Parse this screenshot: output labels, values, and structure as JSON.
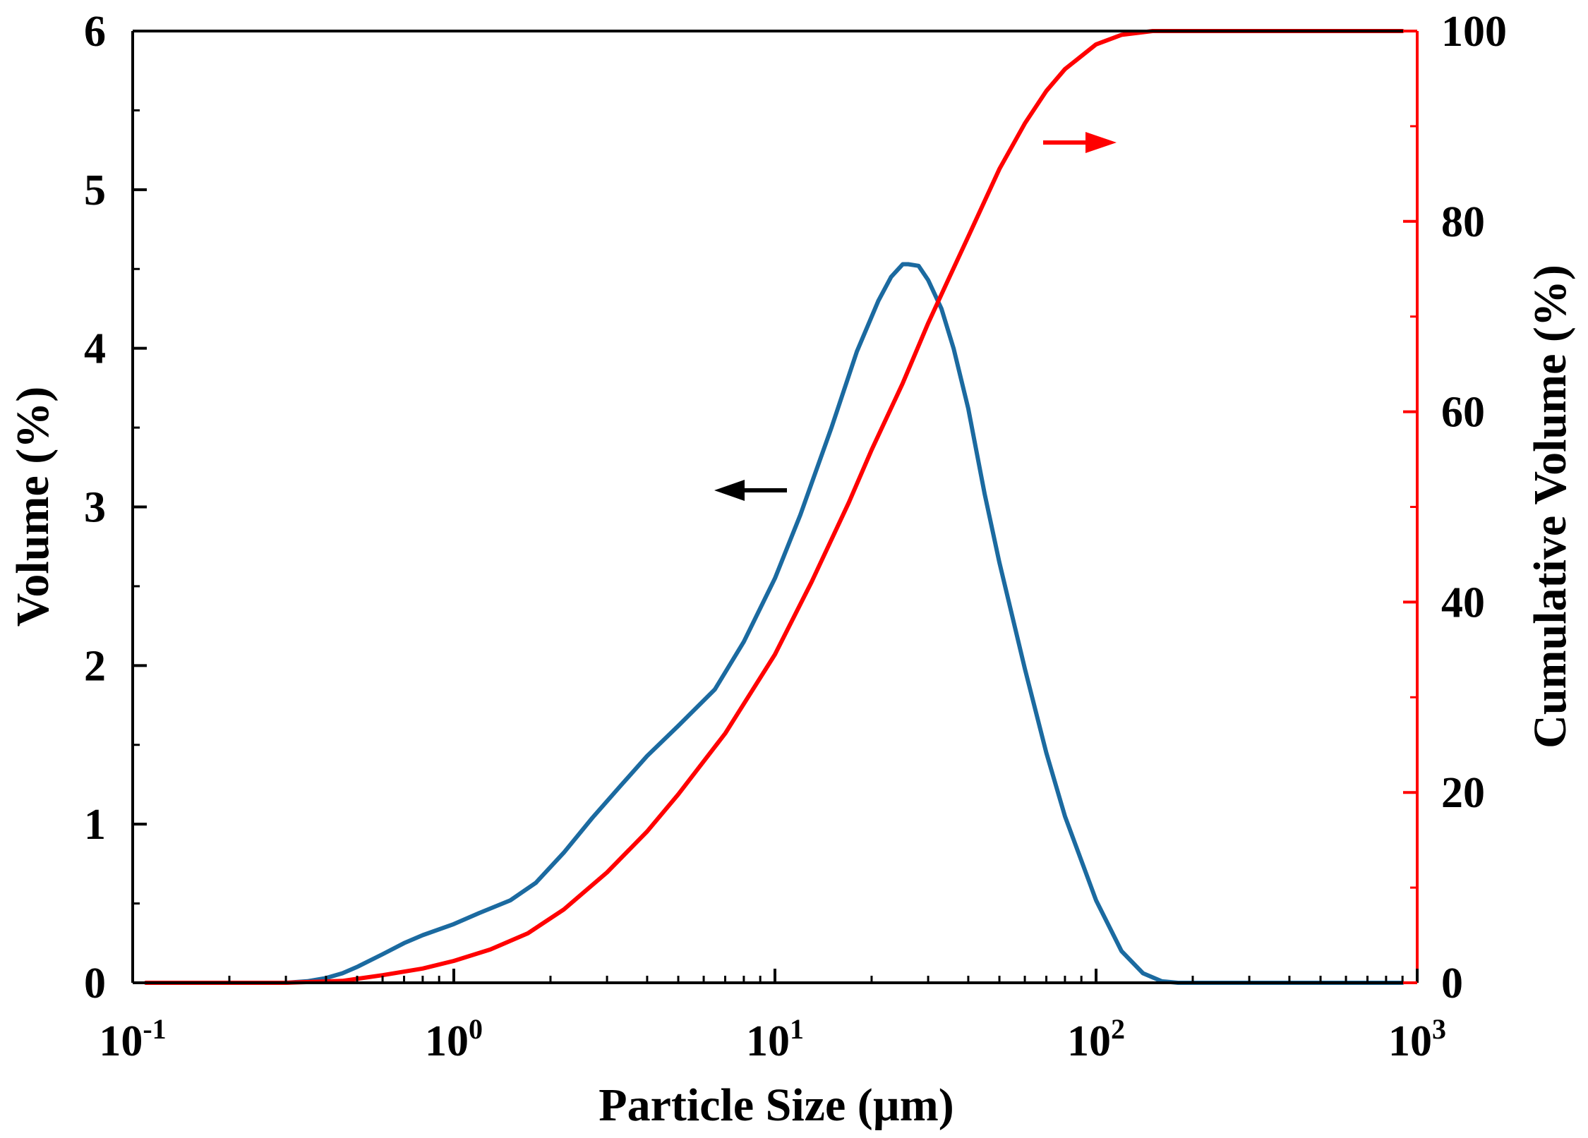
{
  "chart_data": {
    "type": "line",
    "title": "",
    "xlabel": "Particle Size (µm)",
    "ylabel_left": "Volume (%)",
    "ylabel_right": "Cumulative Volume (%)",
    "xscale": "log",
    "xlim": [
      0.1,
      1000
    ],
    "ylim_left": [
      0,
      6
    ],
    "ylim_right": [
      0,
      100
    ],
    "x_ticks": [
      {
        "base": "10",
        "exp": "-1",
        "value": 0.1
      },
      {
        "base": "10",
        "exp": "0",
        "value": 1
      },
      {
        "base": "10",
        "exp": "1",
        "value": 10
      },
      {
        "base": "10",
        "exp": "2",
        "value": 100
      },
      {
        "base": "10",
        "exp": "3",
        "value": 1000
      }
    ],
    "y_left_ticks": [
      "0",
      "1",
      "2",
      "3",
      "4",
      "5",
      "6"
    ],
    "y_right_ticks": [
      "0",
      "20",
      "40",
      "60",
      "80",
      "100"
    ],
    "grid": false,
    "series": [
      {
        "name": "Volume (%)",
        "axis": "left",
        "color": "#1b6aa0",
        "x": [
          0.11,
          0.2,
          0.3,
          0.35,
          0.4,
          0.45,
          0.5,
          0.6,
          0.7,
          0.8,
          1.0,
          1.2,
          1.5,
          1.8,
          2.2,
          2.7,
          3.3,
          4.0,
          5.0,
          6.5,
          8.0,
          10.0,
          12.0,
          15.0,
          18.0,
          21.0,
          23.0,
          25.0,
          26.0,
          28.0,
          30.0,
          33.0,
          36.0,
          40.0,
          45.0,
          50.0,
          60.0,
          70.0,
          80.0,
          100.0,
          120.0,
          140.0,
          160.0,
          180.0,
          200.0,
          300.0,
          500.0,
          900.0
        ],
        "y": [
          0,
          0,
          0,
          0.01,
          0.03,
          0.06,
          0.1,
          0.18,
          0.25,
          0.3,
          0.37,
          0.44,
          0.52,
          0.63,
          0.82,
          1.04,
          1.24,
          1.43,
          1.62,
          1.85,
          2.15,
          2.55,
          2.95,
          3.5,
          3.98,
          4.3,
          4.45,
          4.53,
          4.53,
          4.52,
          4.43,
          4.25,
          4.0,
          3.62,
          3.08,
          2.65,
          1.98,
          1.45,
          1.05,
          0.52,
          0.2,
          0.06,
          0.01,
          0,
          0,
          0,
          0,
          0
        ]
      },
      {
        "name": "Cumulative Volume (%)",
        "axis": "right",
        "color": "#ff0000",
        "x": [
          0.11,
          0.3,
          0.45,
          0.6,
          0.8,
          1.0,
          1.3,
          1.7,
          2.2,
          3.0,
          4.0,
          5.0,
          7.0,
          10.0,
          13.0,
          17.0,
          20.0,
          25.0,
          30.0,
          35.0,
          40.0,
          50.0,
          60.0,
          70.0,
          80.0,
          100.0,
          120.0,
          150.0,
          200.0,
          300.0,
          500.0,
          900.0
        ],
        "y": [
          0,
          0,
          0.2,
          0.8,
          1.5,
          2.3,
          3.5,
          5.2,
          7.7,
          11.6,
          15.9,
          19.8,
          26.2,
          34.5,
          42.1,
          50.5,
          56.0,
          63.0,
          69.3,
          74.2,
          78.4,
          85.5,
          90.3,
          93.7,
          96.0,
          98.6,
          99.6,
          100,
          100,
          100,
          100,
          100
        ]
      }
    ],
    "annotations": [
      {
        "type": "arrow",
        "direction": "left",
        "color": "#000000",
        "refers_to": "Volume (%)"
      },
      {
        "type": "arrow",
        "direction": "right",
        "color": "#ff0000",
        "refers_to": "Cumulative Volume (%)"
      }
    ]
  }
}
